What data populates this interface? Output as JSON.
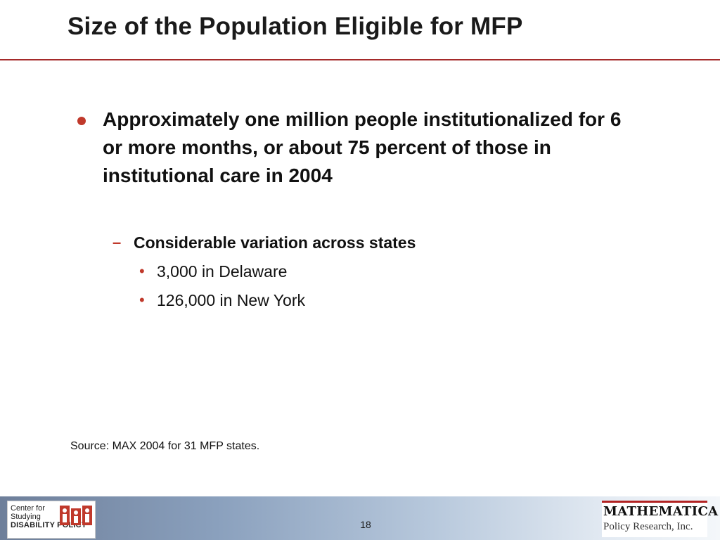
{
  "slide": {
    "title": "Size of the Population Eligible for MFP",
    "main_bullet": "Approximately one million people institutionalized for 6 or more months, or about 75 percent of those in institutional care in 2004",
    "sub_bullet": {
      "marker": "–",
      "text": "Considerable variation across states"
    },
    "third_level": [
      {
        "marker": "•",
        "text": "3,000 in Delaware"
      },
      {
        "marker": "•",
        "text": "126,000 in New York"
      }
    ],
    "source": "Source: MAX 2004 for 31 MFP states.",
    "page_number": "18"
  },
  "footer": {
    "left_logo": {
      "line1": "Center for",
      "line2": "Studying",
      "line3": "DISABILITY POLICY"
    },
    "right_logo": {
      "name": "MATHEMATICA",
      "subtitle": "Policy Research, Inc."
    }
  },
  "colors": {
    "accent": "#c0392b",
    "rule": "#a52a2a",
    "footer_gradient_start": "#6e7f9a",
    "footer_gradient_end": "#f4f7fa"
  }
}
